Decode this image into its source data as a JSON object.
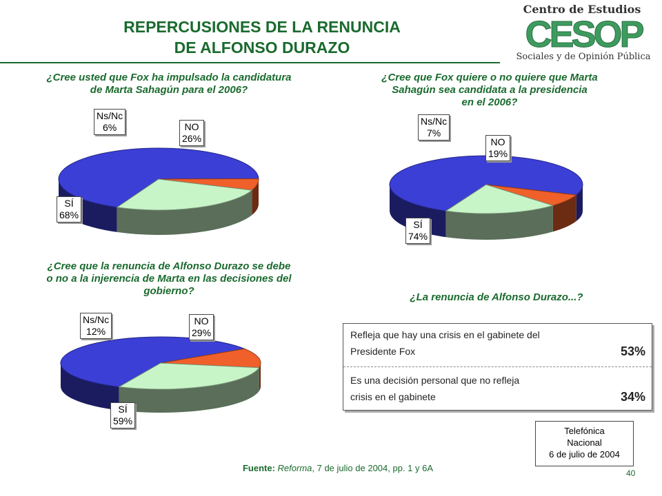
{
  "title": {
    "line1": "REPERCUSIONES DE LA RENUNCIA",
    "line2": "DE ALFONSO DURAZO"
  },
  "logo": {
    "line1": "Centro de Estudios",
    "acronym": "CESOP",
    "line2": "Sociales y de Opinión Pública"
  },
  "chart_data": [
    {
      "type": "pie",
      "title": "¿Cree usted que Fox ha impulsado la candidatura de Marta Sahagún para el 2006?",
      "title_lines": [
        "¿Cree usted que Fox ha impulsado la candidatura",
        "de Marta Sahagún para el 2006?"
      ],
      "slices": [
        {
          "label": "SÍ",
          "value": 68,
          "display": "68%",
          "color": "#3b3fd6"
        },
        {
          "label": "NO",
          "value": 26,
          "display": "26%",
          "color": "#c8f5c8"
        },
        {
          "label": "Ns/Nc",
          "value": 6,
          "display": "6%",
          "color": "#f0602a"
        }
      ]
    },
    {
      "type": "pie",
      "title": "¿Cree que Fox quiere o no quiere que Marta Sahagún sea candidata a la presidencia en el 2006?",
      "title_lines": [
        "¿Cree que Fox quiere o no quiere que Marta",
        "Sahagún sea candidata a la presidencia",
        "en el 2006?"
      ],
      "slices": [
        {
          "label": "SÍ",
          "value": 74,
          "display": "74%",
          "color": "#3b3fd6"
        },
        {
          "label": "NO",
          "value": 19,
          "display": "19%",
          "color": "#c8f5c8"
        },
        {
          "label": "Ns/Nc",
          "value": 7,
          "display": "7%",
          "color": "#f0602a"
        }
      ]
    },
    {
      "type": "pie",
      "title": "¿Cree que la renuncia de Alfonso Durazo se debe o no a la injerencia de Marta en las decisiones del gobierno?",
      "title_lines": [
        "¿Cree que la renuncia de Alfonso Durazo se debe",
        "o no a la injerencia de Marta en las decisiones del",
        "gobierno?"
      ],
      "slices": [
        {
          "label": "SÍ",
          "value": 59,
          "display": "59%",
          "color": "#3b3fd6"
        },
        {
          "label": "NO",
          "value": 29,
          "display": "29%",
          "color": "#c8f5c8"
        },
        {
          "label": "Ns/Nc",
          "value": 12,
          "display": "12%",
          "color": "#f0602a"
        }
      ]
    },
    {
      "type": "table",
      "title": "¿La renuncia de Alfonso Durazo...?",
      "rows": [
        {
          "line1": "Refleja que hay una crisis en el gabinete del",
          "line2": "Presidente Fox",
          "value": 53,
          "display": "53%"
        },
        {
          "line1": "Es una decisión personal que no refleja",
          "line2": "crisis en el gabinete",
          "value": 34,
          "display": "34%"
        }
      ]
    }
  ],
  "source": {
    "label": "Fuente:",
    "publication": "Reforma",
    "rest": ", 7 de julio de 2004, pp. 1 y 6A"
  },
  "note": {
    "line1": "Telefónica",
    "line2": "Nacional",
    "line3": "6 de julio de 2004"
  },
  "page_number": "40"
}
